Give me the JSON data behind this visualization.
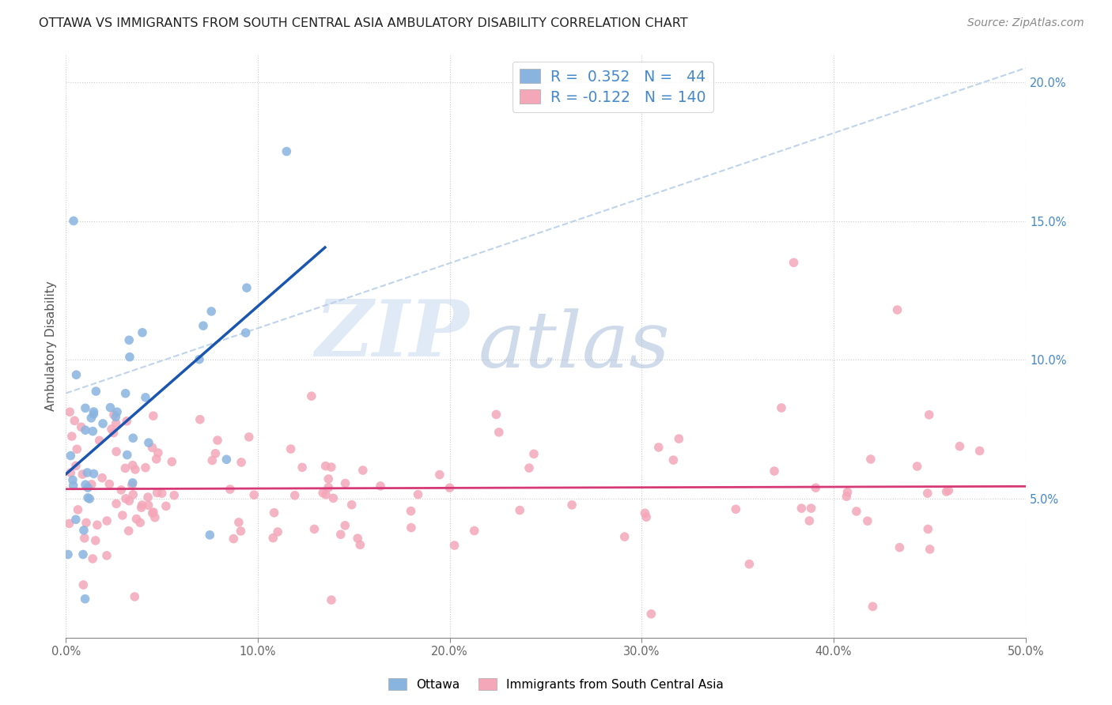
{
  "title": "OTTAWA VS IMMIGRANTS FROM SOUTH CENTRAL ASIA AMBULATORY DISABILITY CORRELATION CHART",
  "source": "Source: ZipAtlas.com",
  "ylabel": "Ambulatory Disability",
  "xlim": [
    0.0,
    0.5
  ],
  "ylim": [
    0.0,
    0.21
  ],
  "xticks": [
    0.0,
    0.1,
    0.2,
    0.3,
    0.4,
    0.5
  ],
  "xtick_labels": [
    "0.0%",
    "10.0%",
    "20.0%",
    "30.0%",
    "40.0%",
    "50.0%"
  ],
  "yticks_right": [
    0.05,
    0.1,
    0.15,
    0.2
  ],
  "ytick_labels_right": [
    "5.0%",
    "10.0%",
    "15.0%",
    "20.0%"
  ],
  "ottawa_color": "#8ab4e0",
  "immigrants_color": "#f4a7b9",
  "ottawa_line_color": "#1a56b0",
  "immigrants_line_color": "#d63975",
  "dashed_line_color": "#b8cfe8",
  "R_ottawa": 0.352,
  "N_ottawa": 44,
  "R_immigrants": -0.122,
  "N_immigrants": 140,
  "background_color": "#ffffff",
  "watermark_zip": "ZIP",
  "watermark_atlas": "atlas",
  "watermark_color_zip": "#c8d8ec",
  "watermark_color_atlas": "#a8c0e0",
  "legend_label1": "Ottawa",
  "legend_label2": "Immigrants from South Central Asia",
  "title_fontsize": 11.5,
  "source_fontsize": 10,
  "tick_fontsize": 10.5,
  "right_tick_color": "#4488cc"
}
